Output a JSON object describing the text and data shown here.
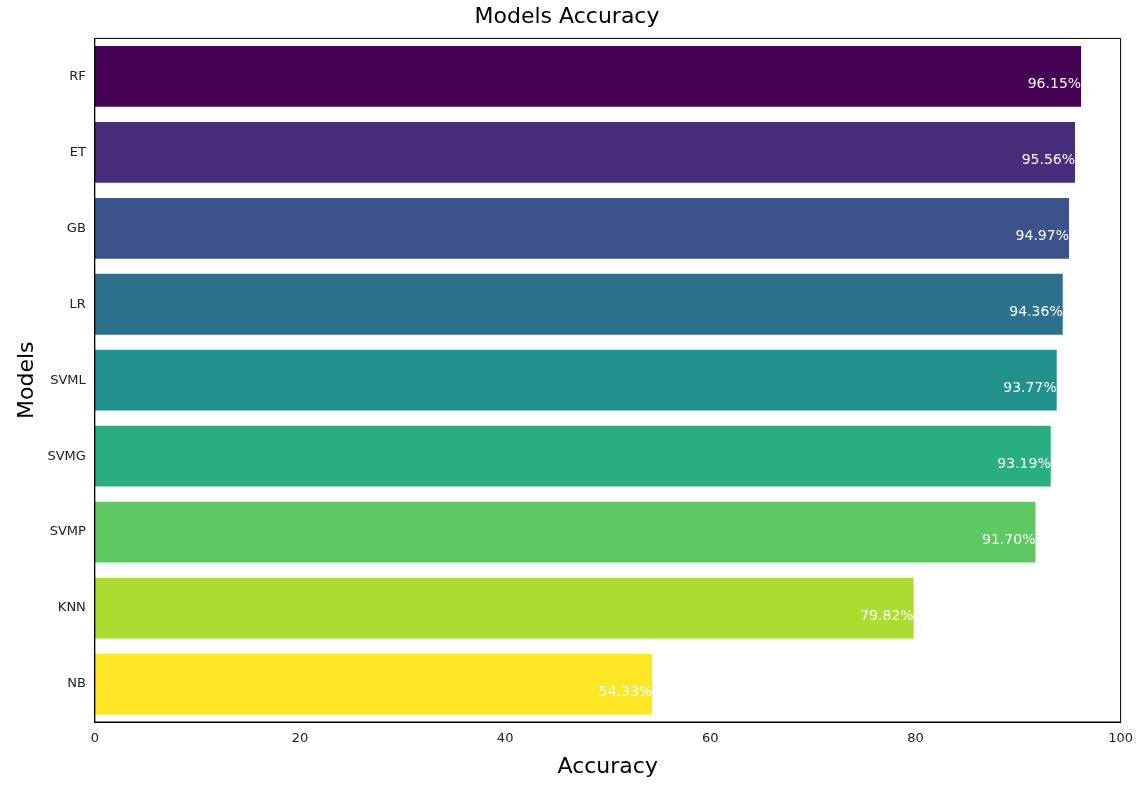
{
  "chart_data": {
    "type": "bar",
    "orientation": "horizontal",
    "title": "Models Accuracy",
    "xlabel": "Accuracy",
    "ylabel": "Models",
    "categories": [
      "RF",
      "ET",
      "GB",
      "LR",
      "SVML",
      "SVMG",
      "SVMP",
      "KNN",
      "NB"
    ],
    "values": [
      96.15,
      95.56,
      94.97,
      94.36,
      93.77,
      93.19,
      91.7,
      79.82,
      54.33
    ],
    "value_labels": [
      "96.15%",
      "95.56%",
      "94.97%",
      "94.36%",
      "93.77%",
      "93.19%",
      "91.70%",
      "79.82%",
      "54.33%"
    ],
    "colors": [
      "#440154",
      "#472d7b",
      "#3b528b",
      "#2c728e",
      "#21918c",
      "#28ae80",
      "#5ec962",
      "#addc30",
      "#fde725"
    ],
    "xlim": [
      0,
      100
    ],
    "xticks": [
      0,
      20,
      40,
      60,
      80,
      100
    ],
    "grid": false,
    "legend": false
  }
}
